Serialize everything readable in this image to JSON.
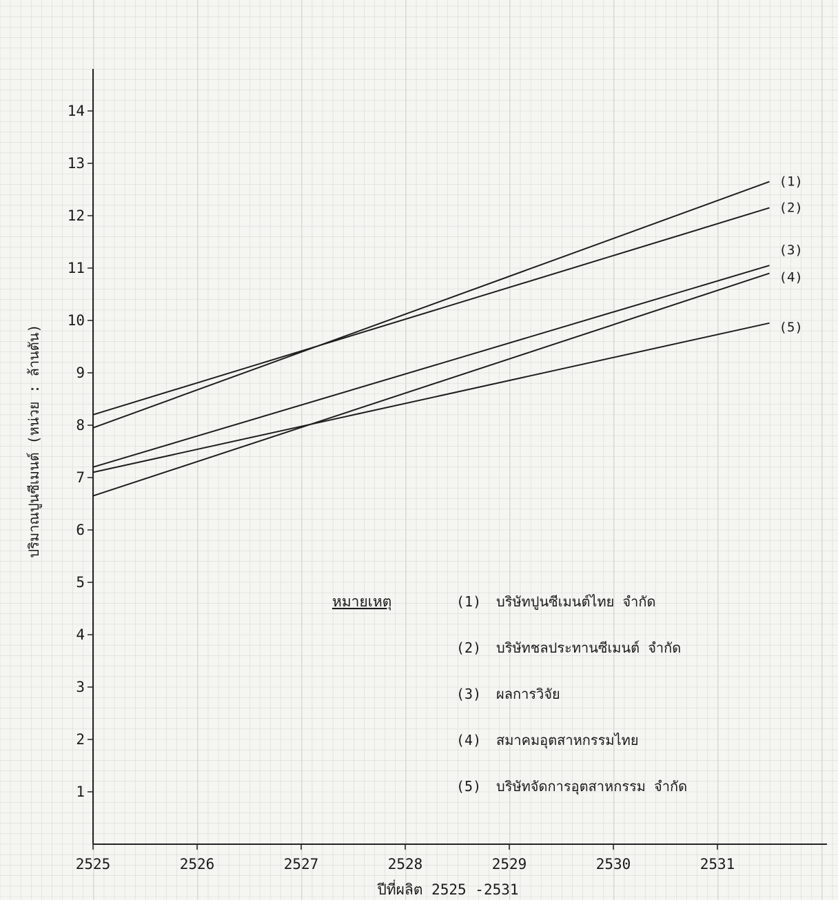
{
  "chart_data": {
    "type": "line",
    "title": "",
    "xlabel": "ปีที่ผลิต 2525 -2531",
    "ylabel": "ปริมาณปูนซีเมนต์ (หน่วย : ล้านตัน)",
    "xlim": [
      2525,
      2531.5
    ],
    "ylim": [
      0,
      14
    ],
    "x_ticks": [
      "2525",
      "2526",
      "2527",
      "2528",
      "2529",
      "2530",
      "2531"
    ],
    "y_ticks": [
      "1",
      "2",
      "3",
      "4",
      "5",
      "6",
      "7",
      "8",
      "9",
      "10",
      "11",
      "12",
      "13",
      "14"
    ],
    "grid": true,
    "series": [
      {
        "label": "(1)",
        "x": [
          2525,
          2531.5
        ],
        "y": [
          7.95,
          12.65
        ]
      },
      {
        "label": "(2)",
        "x": [
          2525,
          2531.5
        ],
        "y": [
          8.2,
          12.15
        ]
      },
      {
        "label": "(3)",
        "x": [
          2525,
          2531.5
        ],
        "y": [
          7.2,
          11.05
        ]
      },
      {
        "label": "(4)",
        "x": [
          2525,
          2531.5
        ],
        "y": [
          6.65,
          10.9
        ]
      },
      {
        "label": "(5)",
        "x": [
          2525,
          2531.5
        ],
        "y": [
          7.1,
          9.95
        ]
      }
    ],
    "legend": {
      "title": "หมายเหตุ",
      "placement": "bottom-right",
      "entries": [
        {
          "num": "(1)",
          "text": "บริษัทปูนซีเมนต์ไทย   จำกัด"
        },
        {
          "num": "(2)",
          "text": "บริษัทชลประทานซีเมนต์   จำกัด"
        },
        {
          "num": "(3)",
          "text": "ผลการวิจัย"
        },
        {
          "num": "(4)",
          "text": "สมาคมอุตสาหกรรมไทย"
        },
        {
          "num": "(5)",
          "text": "บริษัทจัดการอุตสาหกรรม   จำกัด"
        }
      ]
    }
  }
}
